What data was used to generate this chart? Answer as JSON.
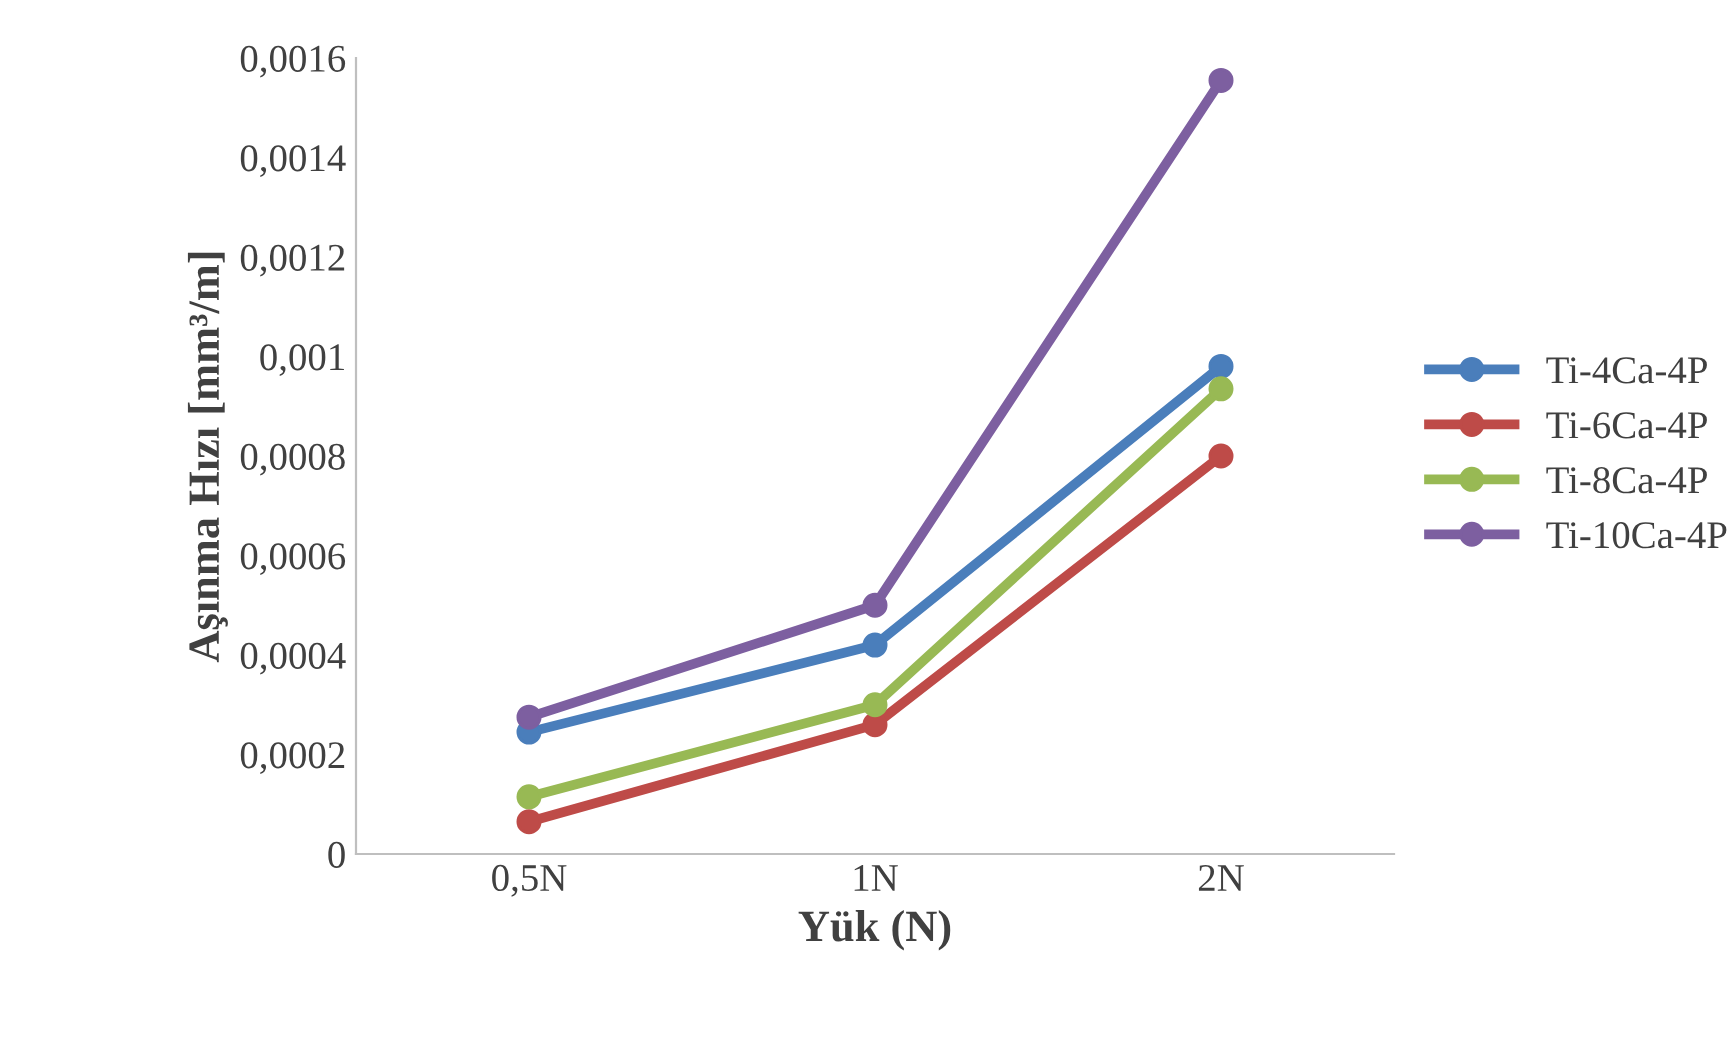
{
  "chart_data": {
    "type": "line",
    "xlabel": "Yük (N)",
    "ylabel": "Aşınma Hızı [mm³/m]",
    "categories": [
      "0,5N",
      "1N",
      "2N"
    ],
    "series": [
      {
        "name": "Ti-4Ca-4P",
        "color": "#4a7ebb",
        "values": [
          0.000245,
          0.00042,
          0.00098
        ]
      },
      {
        "name": "Ti-6Ca-4P",
        "color": "#be4b48",
        "values": [
          6.5e-05,
          0.00026,
          0.0008
        ]
      },
      {
        "name": "Ti-8Ca-4P",
        "color": "#98b954",
        "values": [
          0.000115,
          0.0003,
          0.000935
        ]
      },
      {
        "name": "Ti-10Ca-4P",
        "color": "#7d5fa0",
        "values": [
          0.000275,
          0.0005,
          0.001555
        ]
      }
    ],
    "ylim": [
      0,
      0.0016
    ],
    "yticks": [
      0,
      {
        "value": 0.0002,
        "label": "0,0002"
      },
      {
        "value": 0.0004,
        "label": "0,0004"
      },
      {
        "value": 0.0006,
        "label": "0,0006"
      },
      {
        "value": 0.0008,
        "label": "0,0008"
      },
      {
        "value": 0.001,
        "label": "0,001"
      },
      {
        "value": 0.0012,
        "label": "0,0012"
      },
      {
        "value": 0.0014,
        "label": "0,0014"
      },
      {
        "value": 0.0016,
        "label": "0,0016"
      }
    ],
    "grid": false,
    "legend": "right",
    "marker": "circle",
    "line_style": "solid"
  }
}
